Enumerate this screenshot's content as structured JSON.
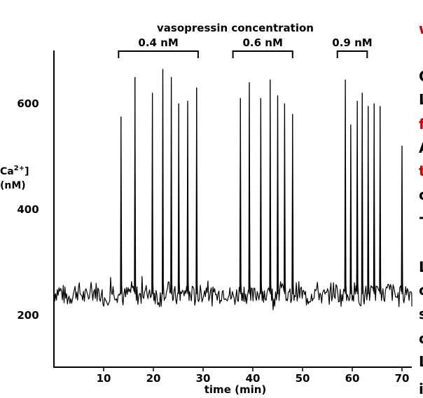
{
  "chart_data": {
    "type": "line",
    "header": "vasopressin concentration",
    "ylabel_main": "Ca",
    "ylabel_sup": "2+",
    "ylabel_tail": "]",
    "ylabel_unit": "(nM)",
    "xlabel": "time (min)",
    "xlim": [
      0,
      72
    ],
    "ylim": [
      125,
      700
    ],
    "xticks": [
      10,
      20,
      30,
      40,
      50,
      60,
      70
    ],
    "yticks": [
      200,
      400,
      600
    ],
    "baseline": 240,
    "periods": [
      {
        "label": "0.4 nM",
        "start": 13,
        "end": 29
      },
      {
        "label": "0.6 nM",
        "start": 36,
        "end": 48
      },
      {
        "label": "0.9 nM",
        "start": 57,
        "end": 63
      }
    ],
    "spikes": [
      {
        "t": 13.5,
        "peak": 575
      },
      {
        "t": 16.3,
        "peak": 650
      },
      {
        "t": 19.8,
        "peak": 620
      },
      {
        "t": 21.9,
        "peak": 665
      },
      {
        "t": 23.6,
        "peak": 650
      },
      {
        "t": 25.1,
        "peak": 600
      },
      {
        "t": 26.9,
        "peak": 605
      },
      {
        "t": 28.7,
        "peak": 630
      },
      {
        "t": 37.5,
        "peak": 610
      },
      {
        "t": 39.3,
        "peak": 640
      },
      {
        "t": 41.6,
        "peak": 610
      },
      {
        "t": 43.5,
        "peak": 645
      },
      {
        "t": 45.0,
        "peak": 615
      },
      {
        "t": 46.4,
        "peak": 600
      },
      {
        "t": 48.0,
        "peak": 580
      },
      {
        "t": 58.6,
        "peak": 645
      },
      {
        "t": 59.7,
        "peak": 560
      },
      {
        "t": 61.0,
        "peak": 605
      },
      {
        "t": 62.0,
        "peak": 620
      },
      {
        "t": 63.2,
        "peak": 595
      },
      {
        "t": 64.4,
        "peak": 600
      },
      {
        "t": 65.6,
        "peak": 595
      },
      {
        "t": 70.0,
        "peak": 520
      }
    ]
  },
  "side_text": {
    "line1": "w",
    "line2": "C",
    "line3": "L",
    "line4": "f",
    "line5": "A",
    "line6": "t",
    "line7": "c",
    "line8": "-",
    "line9": "L",
    "line10": "c",
    "line11": "s",
    "line12": "c",
    "line13": "L",
    "line14": "i"
  },
  "colors": {
    "trace": "#000000",
    "side_red": "#cc0000"
  }
}
